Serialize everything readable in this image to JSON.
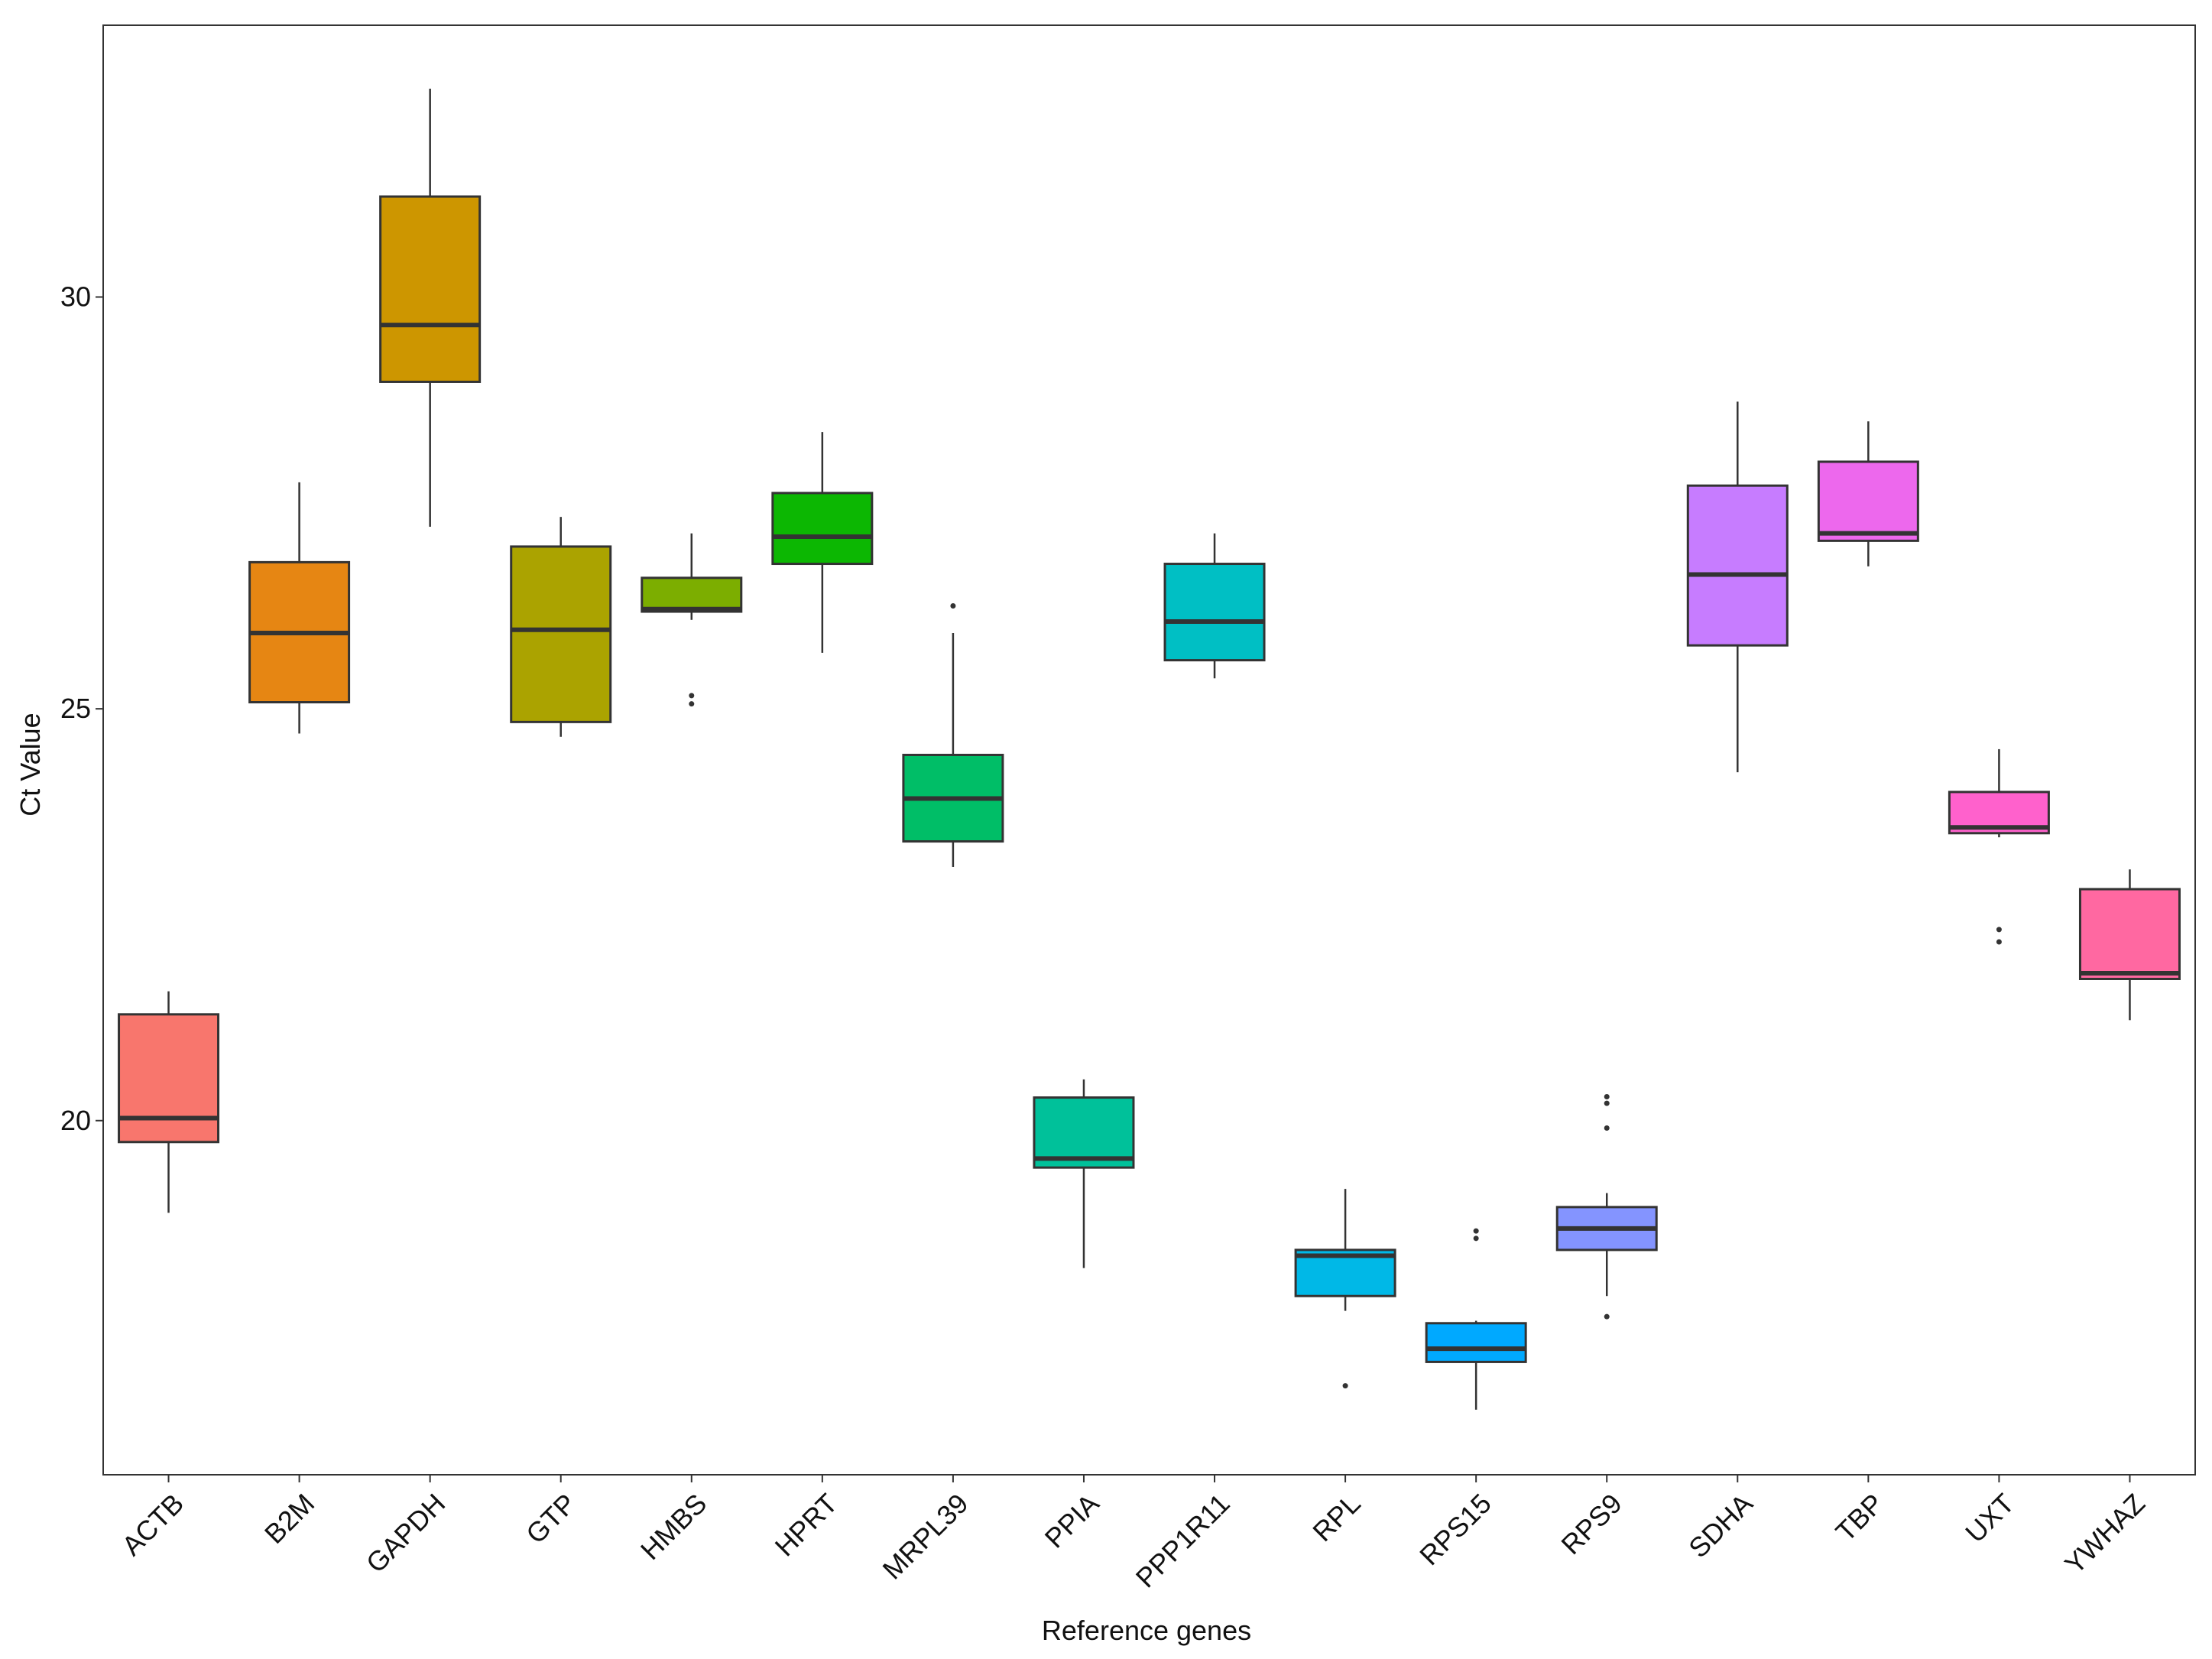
{
  "chart_data": {
    "type": "box",
    "x_label": "Reference genes",
    "y_label": "Ct Value",
    "categories": [
      "ACTB",
      "B2M",
      "GAPDH",
      "GTP",
      "HMBS",
      "HPRT",
      "MRPL39",
      "PPIA",
      "PPP1R11",
      "RPL",
      "RPS15",
      "RPS9",
      "SDHA",
      "TBP",
      "UXT",
      "YWHAZ"
    ],
    "colors": [
      "#F8766D",
      "#E68613",
      "#CD9600",
      "#ABA300",
      "#7CAE00",
      "#0CB702",
      "#00BE67",
      "#00C19A",
      "#00BFC4",
      "#00B8E7",
      "#00A9FF",
      "#8494FF",
      "#C77CFF",
      "#ED68ED",
      "#FF61CC",
      "#FF68A1"
    ],
    "boxes": [
      {
        "low": 18.88,
        "q1": 19.74,
        "median": 20.03,
        "q3": 21.29,
        "high": 21.57,
        "outliers": []
      },
      {
        "low": 24.7,
        "q1": 25.08,
        "median": 25.92,
        "q3": 26.78,
        "high": 27.75,
        "outliers": []
      },
      {
        "low": 27.21,
        "q1": 28.97,
        "median": 29.66,
        "q3": 31.22,
        "high": 32.53,
        "outliers": []
      },
      {
        "low": 24.66,
        "q1": 24.84,
        "median": 25.96,
        "q3": 26.97,
        "high": 27.33,
        "outliers": []
      },
      {
        "low": 26.08,
        "q1": 26.18,
        "median": 26.21,
        "q3": 26.59,
        "high": 27.13,
        "outliers": [
          25.16,
          25.06
        ]
      },
      {
        "low": 25.68,
        "q1": 26.76,
        "median": 27.09,
        "q3": 27.62,
        "high": 28.36,
        "outliers": []
      },
      {
        "low": 23.08,
        "q1": 23.39,
        "median": 23.91,
        "q3": 24.44,
        "high": 25.92,
        "outliers": [
          26.25
        ]
      },
      {
        "low": 18.21,
        "q1": 19.43,
        "median": 19.54,
        "q3": 20.28,
        "high": 20.5,
        "outliers": []
      },
      {
        "low": 25.37,
        "q1": 25.59,
        "median": 26.06,
        "q3": 26.76,
        "high": 27.13,
        "outliers": []
      },
      {
        "low": 17.69,
        "q1": 17.87,
        "median": 18.36,
        "q3": 18.43,
        "high": 19.17,
        "outliers": [
          16.78
        ]
      },
      {
        "low": 16.49,
        "q1": 17.07,
        "median": 17.23,
        "q3": 17.54,
        "high": 17.57,
        "outliers": [
          18.66,
          18.57
        ]
      },
      {
        "low": 17.87,
        "q1": 18.43,
        "median": 18.69,
        "q3": 18.95,
        "high": 19.12,
        "outliers": [
          20.29,
          20.21,
          19.91,
          17.62
        ]
      },
      {
        "low": 24.23,
        "q1": 25.77,
        "median": 26.63,
        "q3": 27.71,
        "high": 28.73,
        "outliers": []
      },
      {
        "low": 26.73,
        "q1": 27.04,
        "median": 27.13,
        "q3": 28.0,
        "high": 28.49,
        "outliers": []
      },
      {
        "low": 23.44,
        "q1": 23.49,
        "median": 23.56,
        "q3": 23.99,
        "high": 24.51,
        "outliers": [
          22.32,
          22.17
        ]
      },
      {
        "low": 21.22,
        "q1": 21.72,
        "median": 21.79,
        "q3": 22.81,
        "high": 23.05,
        "outliers": []
      }
    ],
    "ylim": [
      15.7,
      33.3
    ],
    "yticks": [
      20,
      25,
      30
    ],
    "grid": false
  }
}
